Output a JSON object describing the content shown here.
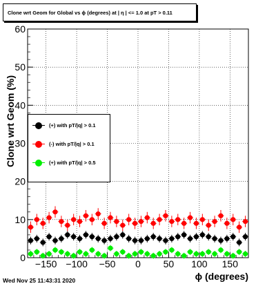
{
  "title": "Clone wrt Geom for Global vs ϕ (degrees) at | η | <= 1.0 at pT > 0.11",
  "footer_timestamp": "Wed Nov 25 11:43:31 2020",
  "chart_data": {
    "type": "scatter",
    "title": "Clone wrt Geom for Global vs ϕ (degrees) at | η | <= 1.0 at pT > 0.11",
    "xlabel": "ϕ (degrees)",
    "ylabel": "Clone wrt Geom (%)",
    "xlim": [
      -180,
      180
    ],
    "ylim": [
      0,
      60
    ],
    "xticks": [
      -150,
      -100,
      -50,
      0,
      50,
      100,
      150
    ],
    "xtick_labels": [
      "−150",
      "−100",
      "−50",
      "0",
      "50",
      "100",
      "150"
    ],
    "yticks": [
      0,
      10,
      20,
      30,
      40,
      50,
      60
    ],
    "ytick_labels": [
      "0",
      "10",
      "20",
      "30",
      "40",
      "50",
      "60"
    ],
    "grid": true,
    "legend_position": "left-middle",
    "series": [
      {
        "name": "(+) with pT/|q| > 0.1",
        "color": "#000000",
        "x": [
          -175,
          -165,
          -155,
          -145,
          -135,
          -125,
          -115,
          -105,
          -95,
          -85,
          -75,
          -65,
          -55,
          -45,
          -35,
          -25,
          -15,
          -5,
          5,
          15,
          25,
          35,
          45,
          55,
          65,
          75,
          85,
          95,
          105,
          115,
          125,
          135,
          145,
          155,
          165,
          175
        ],
        "y": [
          4.5,
          5.0,
          4.0,
          5.5,
          4.5,
          5.0,
          6.0,
          5.5,
          5.0,
          6.0,
          5.5,
          5.0,
          4.5,
          5.0,
          5.5,
          6.0,
          5.0,
          4.5,
          4.5,
          5.0,
          5.5,
          5.0,
          4.5,
          5.0,
          5.5,
          6.0,
          5.0,
          5.5,
          6.0,
          5.5,
          5.0,
          4.5,
          5.0,
          5.5,
          4.0,
          5.5
        ],
        "err": [
          1.0,
          1.0,
          1.0,
          1.0,
          1.0,
          1.0,
          1.0,
          1.0,
          1.0,
          1.0,
          1.0,
          1.0,
          1.0,
          1.0,
          1.0,
          1.0,
          1.0,
          1.0,
          1.0,
          1.0,
          1.0,
          1.0,
          1.0,
          1.0,
          1.0,
          1.0,
          1.0,
          1.0,
          1.0,
          1.0,
          1.0,
          1.0,
          1.0,
          1.0,
          1.0,
          1.0
        ]
      },
      {
        "name": "(-) with pT/|q| > 0.1",
        "color": "#ff0000",
        "x": [
          -175,
          -165,
          -155,
          -145,
          -135,
          -125,
          -115,
          -105,
          -95,
          -85,
          -75,
          -65,
          -55,
          -45,
          -35,
          -25,
          -15,
          -5,
          5,
          15,
          25,
          35,
          45,
          55,
          65,
          75,
          85,
          95,
          105,
          115,
          125,
          135,
          145,
          155,
          165,
          175
        ],
        "y": [
          8.0,
          10.0,
          9.0,
          10.5,
          12.0,
          9.5,
          8.5,
          10.0,
          9.5,
          11.0,
          10.0,
          11.5,
          9.0,
          10.5,
          9.5,
          8.5,
          10.0,
          9.0,
          9.5,
          10.5,
          9.0,
          10.0,
          11.0,
          9.5,
          10.0,
          9.0,
          10.5,
          9.0,
          10.0,
          8.5,
          9.5,
          11.0,
          9.0,
          10.0,
          8.0,
          9.5
        ],
        "err": [
          1.5,
          1.5,
          1.5,
          1.5,
          1.5,
          1.5,
          1.5,
          1.5,
          1.5,
          1.5,
          1.5,
          1.5,
          1.5,
          1.5,
          1.5,
          1.5,
          1.5,
          1.5,
          1.5,
          1.5,
          1.5,
          1.5,
          1.5,
          1.5,
          1.5,
          1.5,
          1.5,
          1.5,
          1.5,
          1.5,
          1.5,
          1.5,
          1.5,
          1.5,
          1.5,
          1.5
        ]
      },
      {
        "name": "(+) with pT/|q| > 0.5",
        "color": "#00ee00",
        "x": [
          -175,
          -165,
          -155,
          -145,
          -135,
          -125,
          -115,
          -105,
          -95,
          -85,
          -75,
          -65,
          -55,
          -45,
          -35,
          -25,
          -15,
          -5,
          5,
          15,
          25,
          35,
          45,
          55,
          65,
          75,
          85,
          95,
          105,
          115,
          125,
          135,
          145,
          155,
          165,
          175
        ],
        "y": [
          1.0,
          1.5,
          0.5,
          1.0,
          2.0,
          1.5,
          1.0,
          0.5,
          1.5,
          1.0,
          2.0,
          1.0,
          0.5,
          2.5,
          1.0,
          1.5,
          0.5,
          1.0,
          1.5,
          1.0,
          0.5,
          1.0,
          1.5,
          2.0,
          1.0,
          0.5,
          1.5,
          1.0,
          1.0,
          1.5,
          1.0,
          2.0,
          1.0,
          0.5,
          1.5,
          1.0
        ],
        "err": [
          0.8,
          0.8,
          0.8,
          0.8,
          0.8,
          0.8,
          0.8,
          0.8,
          0.8,
          0.8,
          0.8,
          0.8,
          0.8,
          0.8,
          0.8,
          0.8,
          0.8,
          0.8,
          0.8,
          0.8,
          0.8,
          0.8,
          0.8,
          0.8,
          0.8,
          0.8,
          0.8,
          0.8,
          0.8,
          0.8,
          0.8,
          0.8,
          0.8,
          0.8,
          0.8,
          0.8
        ]
      }
    ]
  }
}
